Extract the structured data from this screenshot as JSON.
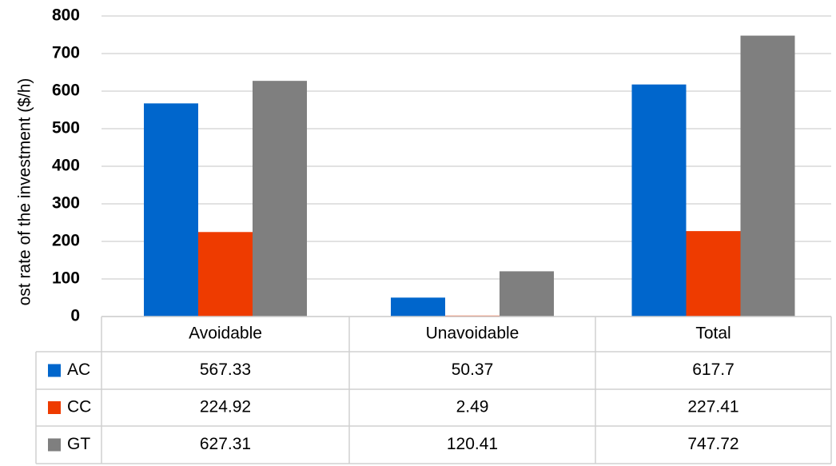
{
  "chart_data": {
    "type": "bar",
    "y_label": "ost rate of the investment ($/h)",
    "categories": [
      "Avoidable",
      "Unavoidable",
      "Total"
    ],
    "series": [
      {
        "name": "AC",
        "color": "#0066cc",
        "values": [
          567.33,
          50.37,
          617.7
        ]
      },
      {
        "name": "CC",
        "color": "#ee3b00",
        "values": [
          224.92,
          2.49,
          227.41
        ]
      },
      {
        "name": "GT",
        "color": "#7f7f7f",
        "values": [
          627.31,
          120.41,
          747.72
        ]
      }
    ],
    "ylim": [
      0,
      800
    ],
    "yticks": [
      0,
      100,
      200,
      300,
      400,
      500,
      600,
      700,
      800
    ],
    "grid": true,
    "data_table": true
  }
}
